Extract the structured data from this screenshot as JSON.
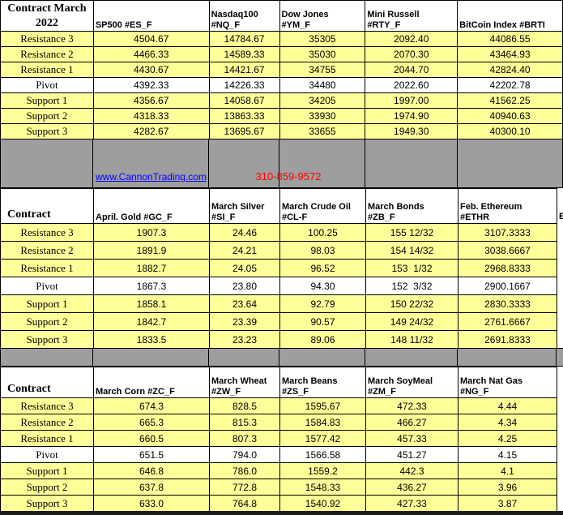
{
  "colors": {
    "yellow": "#FFFF99",
    "gray": "#9E9E9E",
    "border": "#000000",
    "link_blue": "#0000FF",
    "phone_red": "#FF0000",
    "bottom_bar": "#1C1C1C"
  },
  "banner": {
    "link": "www.CannonTrading.com",
    "phone": "310-859-9572"
  },
  "partial_header": "B",
  "sections": [
    {
      "corner": "Contract March\n2022",
      "columns": [
        "SP500 #ES_F",
        "Nasdaq100\n#NQ_F",
        "Dow Jones\n#YM_F",
        "Mini Russell\n#RTY_F",
        "BitCoin Index #BRTI"
      ],
      "rows": [
        {
          "label": "Resistance 3",
          "values": [
            "4504.67",
            "14784.67",
            "35305",
            "2092.40",
            "44086.55"
          ]
        },
        {
          "label": "Resistance 2",
          "values": [
            "4466.33",
            "14589.33",
            "35030",
            "2070.30",
            "43464.93"
          ]
        },
        {
          "label": "Resistance 1",
          "values": [
            "4430.67",
            "14421.67",
            "34755",
            "2044.70",
            "42824.40"
          ]
        },
        {
          "label": "Pivot",
          "values": [
            "4392.33",
            "14226.33",
            "34480",
            "2022.60",
            "42202.78"
          ]
        },
        {
          "label": "Support 1",
          "values": [
            "4356.67",
            "14058.67",
            "34205",
            "1997.00",
            "41562.25"
          ]
        },
        {
          "label": "Support 2",
          "values": [
            "4318.33",
            "13863.33",
            "33930",
            "1974.90",
            "40940.63"
          ]
        },
        {
          "label": "Support 3",
          "values": [
            "4282.67",
            "13695.67",
            "33655",
            "1949.30",
            "40300.10"
          ]
        }
      ]
    },
    {
      "corner": "Contract",
      "columns": [
        "April. Gold #GC_F",
        "March Silver\n#SI_F",
        "March Crude Oil\n#CL-F",
        "March Bonds\n#ZB_F",
        "Feb.  Ethereum\n#ETHR"
      ],
      "rows": [
        {
          "label": "Resistance 3",
          "values": [
            "1907.3",
            "24.46",
            "100.25",
            "155 12/32",
            "3107.3333"
          ]
        },
        {
          "label": "Resistance 2",
          "values": [
            "1891.9",
            "24.21",
            "98.03",
            "154 14/32",
            "3038.6667"
          ]
        },
        {
          "label": "Resistance 1",
          "values": [
            "1882.7",
            "24.05",
            "96.52",
            "153  1/32",
            "2968.8333"
          ]
        },
        {
          "label": "Pivot",
          "values": [
            "1867.3",
            "23.80",
            "94.30",
            "152  3/32",
            "2900.1667"
          ]
        },
        {
          "label": "Support 1",
          "values": [
            "1858.1",
            "23.64",
            "92.79",
            "150 22/32",
            "2830.3333"
          ]
        },
        {
          "label": "Support 2",
          "values": [
            "1842.7",
            "23.39",
            "90.57",
            "149 24/32",
            "2761.6667"
          ]
        },
        {
          "label": "Support 3",
          "values": [
            "1833.5",
            "23.23",
            "89.06",
            "148 11/32",
            "2691.8333"
          ]
        }
      ]
    },
    {
      "corner": "Contract",
      "columns": [
        "March Corn #ZC_F",
        "March  Wheat\n#ZW_F",
        "March Beans\n#ZS_F",
        "March SoyMeal\n#ZM_F",
        "March Nat Gas\n#NG_F"
      ],
      "rows": [
        {
          "label": "Resistance 3",
          "values": [
            "674.3",
            "828.5",
            "1595.67",
            "472.33",
            "4.44"
          ]
        },
        {
          "label": "Resistance 2",
          "values": [
            "665.3",
            "815.3",
            "1584.83",
            "466.27",
            "4.34"
          ]
        },
        {
          "label": "Resistance 1",
          "values": [
            "660.5",
            "807.3",
            "1577.42",
            "457.33",
            "4.25"
          ]
        },
        {
          "label": "Pivot",
          "values": [
            "651.5",
            "794.0",
            "1566.58",
            "451.27",
            "4.15"
          ]
        },
        {
          "label": "Support 1",
          "values": [
            "646.8",
            "786.0",
            "1559.2",
            "442.3",
            "4.1"
          ]
        },
        {
          "label": "Support 2",
          "values": [
            "637.8",
            "772.8",
            "1548.33",
            "436.27",
            "3.96"
          ]
        },
        {
          "label": "Support 3",
          "values": [
            "633.0",
            "764.8",
            "1540.92",
            "427.33",
            "3.87"
          ]
        }
      ]
    }
  ]
}
